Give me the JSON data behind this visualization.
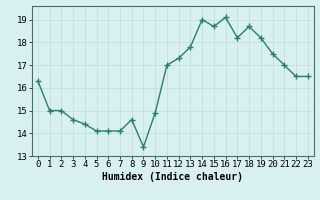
{
  "x": [
    0,
    1,
    2,
    3,
    4,
    5,
    6,
    7,
    8,
    9,
    10,
    11,
    12,
    13,
    14,
    15,
    16,
    17,
    18,
    19,
    20,
    21,
    22,
    23
  ],
  "y": [
    16.3,
    15.0,
    15.0,
    14.6,
    14.4,
    14.1,
    14.1,
    14.1,
    14.6,
    13.4,
    14.9,
    17.0,
    17.3,
    17.8,
    19.0,
    18.7,
    19.1,
    18.2,
    18.7,
    18.2,
    17.5,
    17.0,
    16.5,
    16.5
  ],
  "line_color": "#2d7d6e",
  "marker": "+",
  "markersize": 4,
  "markeredgewidth": 1.0,
  "linewidth": 1.0,
  "xlabel": "Humidex (Indice chaleur)",
  "xlabel_fontsize": 7,
  "xlim": [
    -0.5,
    23.5
  ],
  "ylim": [
    13,
    19.6
  ],
  "yticks": [
    13,
    14,
    15,
    16,
    17,
    18,
    19
  ],
  "xticks": [
    0,
    1,
    2,
    3,
    4,
    5,
    6,
    7,
    8,
    9,
    10,
    11,
    12,
    13,
    14,
    15,
    16,
    17,
    18,
    19,
    20,
    21,
    22,
    23
  ],
  "xtick_labels": [
    "0",
    "1",
    "2",
    "3",
    "4",
    "5",
    "6",
    "7",
    "8",
    "9",
    "10",
    "11",
    "12",
    "13",
    "14",
    "15",
    "16",
    "17",
    "18",
    "19",
    "20",
    "21",
    "22",
    "23"
  ],
  "grid_color": "#c0e0e0",
  "bg_color": "#d8f0f0",
  "tick_fontsize": 6.5,
  "spine_color": "#407070"
}
